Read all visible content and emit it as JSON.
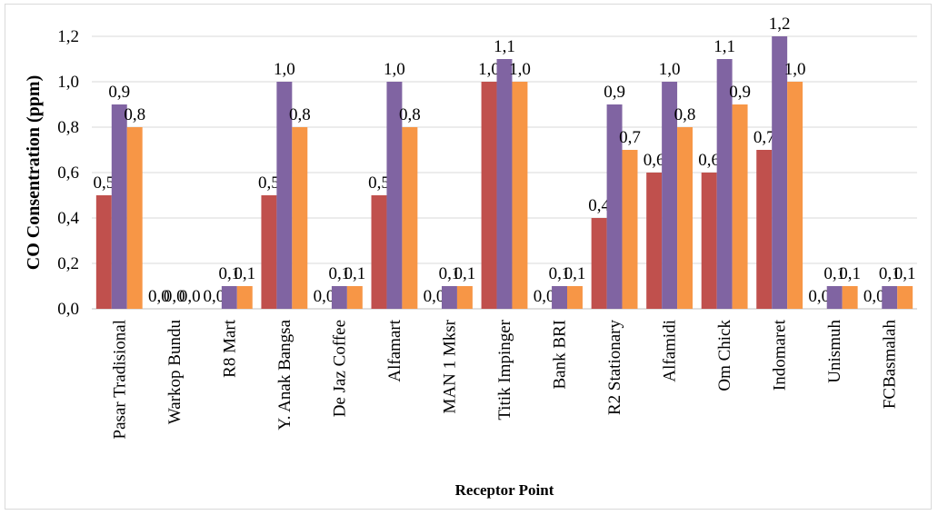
{
  "chart_data": {
    "type": "bar",
    "title": "",
    "xlabel": "Receptor Point",
    "ylabel": "CO Consentration (ppm)",
    "ylim": [
      0,
      1.2
    ],
    "yticks": [
      "0,0",
      "0,2",
      "0,4",
      "0,6",
      "0,8",
      "1,0",
      "1,2"
    ],
    "grid": true,
    "legend": "none",
    "categories": [
      "Pasar Tradisional",
      "Warkop Bundu",
      "R8 Mart",
      "Y. Anak Bangsa",
      "De Jaz Coffee",
      "Alfamart",
      "MAN 1 Mksr",
      "Titik Impinger",
      "Bank BRI",
      "R2 Stationary",
      "Alfamidi",
      "Om Chick",
      "Indomaret",
      "Unismuh",
      "FCBasmalah"
    ],
    "series": [
      {
        "color": "#c0504d",
        "values": [
          0.5,
          0.0,
          0.0,
          0.5,
          0.0,
          0.5,
          0.0,
          1.0,
          0.0,
          0.4,
          0.6,
          0.6,
          0.7,
          0.0,
          0.0
        ],
        "labels": [
          "0,5",
          "0,0",
          "0,0",
          "0,5",
          "0,0",
          "0,5",
          "0,0",
          "1,0",
          "0,0",
          "0,4",
          "0,6",
          "0,6",
          "0,7",
          "0,0",
          "0,0"
        ]
      },
      {
        "color": "#8064a2",
        "values": [
          0.9,
          0.0,
          0.1,
          1.0,
          0.1,
          1.0,
          0.1,
          1.1,
          0.1,
          0.9,
          1.0,
          1.1,
          1.2,
          0.1,
          0.1
        ],
        "labels": [
          "0,9",
          "0,0",
          "0,1",
          "1,0",
          "0,1",
          "1,0",
          "0,1",
          "1,1",
          "0,1",
          "0,9",
          "1,0",
          "1,1",
          "1,2",
          "0,1",
          "0,1"
        ]
      },
      {
        "color": "#f79646",
        "values": [
          0.8,
          0.0,
          0.1,
          0.8,
          0.1,
          0.8,
          0.1,
          1.0,
          0.1,
          0.7,
          0.8,
          0.9,
          1.0,
          0.1,
          0.1
        ],
        "labels": [
          "0,8",
          "0,0",
          "0,1",
          "0,8",
          "0,1",
          "0,8",
          "0,1",
          "1,0",
          "0,1",
          "0,7",
          "0,8",
          "0,9",
          "1,0",
          "0,1",
          "0,1"
        ]
      }
    ],
    "colors": {
      "gridline": "#d9d9d9",
      "axis": "#bfbfbf"
    }
  }
}
